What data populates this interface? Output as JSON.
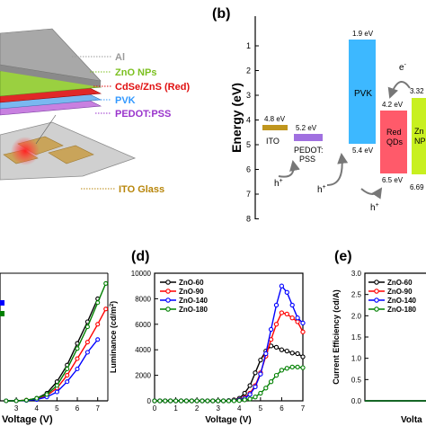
{
  "colors": {
    "series": [
      "#000000",
      "#ff0000",
      "#0000ff",
      "#008000"
    ],
    "al": "#9a9a9a",
    "zno_label": "#7cc020",
    "qd_label": "#e01010",
    "pvk_label": "#3399ff",
    "pedot_label": "#9933cc",
    "ito_label": "#b8860b",
    "ito_level": "#c0961e",
    "pedot_level": "#a070e0",
    "pvk_level": "#3db8ff",
    "qd_level": "#ff5a6a",
    "zno_level": "#c8f020"
  },
  "panel_a": {
    "layers": [
      "Al",
      "ZnO NPs",
      "CdSe/ZnS (Red)",
      "PVK",
      "PEDOT:PSS"
    ],
    "substrate": "ITO Glass"
  },
  "panel_b": {
    "letter": "(b)",
    "ylabel": "Energy (eV)",
    "yticks": [
      "1",
      "2",
      "3",
      "4",
      "5",
      "6",
      "7",
      "8"
    ],
    "ito": {
      "label": "ITO",
      "level": "4.8 eV"
    },
    "pedot": {
      "label1": "PEDOT:",
      "label2": "PSS",
      "level": "5.2 eV"
    },
    "pvk": {
      "label": "PVK",
      "lumo": "1.9 eV",
      "homo": "5.4 eV"
    },
    "qd": {
      "label1": "Red",
      "label2": "QDs",
      "lumo": "4.2 eV",
      "homo": "6.5 eV"
    },
    "zno": {
      "label1": "Zn",
      "label2": "NP",
      "lumo": "3.32",
      "homo": "6.69"
    },
    "hole": "h",
    "electron": "e",
    "plus": "+",
    "minus": "-"
  },
  "panel_c": {
    "xlabel": "Voltage (V)",
    "xticks": [
      "3",
      "4",
      "5",
      "6",
      "7"
    ]
  },
  "panel_d": {
    "letter": "(d)",
    "xlabel": "Voltage (V)",
    "ylabel": "Luminance (cd/m",
    "ylabel_sup": "2",
    "ylabel_end": ")",
    "xticks": [
      "0",
      "1",
      "2",
      "3",
      "4",
      "5",
      "6",
      "7"
    ],
    "yticks": [
      "0",
      "2000",
      "4000",
      "6000",
      "8000",
      "10000"
    ],
    "legend": [
      "ZnO-60",
      "ZnO-90",
      "ZnO-140",
      "ZnO-180"
    ]
  },
  "panel_e": {
    "letter": "(e)",
    "xlabel": "Volta",
    "ylabel": "Current Efficiency (cd/A)",
    "yticks": [
      "0.0",
      "0.5",
      "1.0",
      "1.5",
      "2.0",
      "2.5",
      "3.0"
    ],
    "legend": [
      "ZnO-60",
      "ZnO-90",
      "ZnO-140",
      "ZnO-180"
    ]
  },
  "chart_data": [
    {
      "type": "line",
      "panel": "c",
      "title": "",
      "xlabel": "Voltage (V)",
      "ylabel": "",
      "xlim": [
        2.2,
        7.5
      ],
      "ylim": [
        0,
        100
      ],
      "series": [
        {
          "x": [
            2.5,
            3.0,
            3.5,
            4.0,
            4.5,
            5.0,
            5.5,
            6.0,
            6.5,
            7.0
          ],
          "y": [
            0,
            0,
            0.5,
            2,
            6,
            15,
            28,
            45,
            62,
            80
          ]
        },
        {
          "x": [
            2.5,
            3.0,
            3.5,
            4.0,
            4.5,
            5.0,
            5.5,
            6.0,
            6.5,
            7.0,
            7.4
          ],
          "y": [
            0,
            0,
            0.5,
            1.5,
            4,
            10,
            20,
            33,
            46,
            60,
            72
          ]
        },
        {
          "x": [
            2.5,
            3.0,
            3.5,
            4.0,
            4.5,
            5.0,
            5.5,
            6.0,
            6.5,
            7.0
          ],
          "y": [
            0,
            0,
            0.3,
            1,
            3,
            7,
            15,
            25,
            38,
            48
          ]
        },
        {
          "x": [
            2.5,
            3.0,
            3.5,
            4.0,
            4.5,
            5.0,
            5.5,
            6.0,
            6.5,
            7.0,
            7.4
          ],
          "y": [
            0,
            0,
            0.5,
            2,
            5,
            12,
            25,
            41,
            58,
            77,
            92
          ]
        }
      ]
    },
    {
      "type": "line",
      "panel": "d",
      "title": "",
      "xlabel": "Voltage (V)",
      "ylabel": "Luminance (cd/m2)",
      "xlim": [
        0,
        7
      ],
      "ylim": [
        0,
        10000
      ],
      "legend": "top-left",
      "series": [
        {
          "name": "ZnO-60",
          "x": [
            0,
            0.25,
            0.5,
            0.75,
            1,
            1.25,
            1.5,
            1.75,
            2,
            2.25,
            2.5,
            2.75,
            3,
            3.25,
            3.5,
            3.75,
            4,
            4.25,
            4.5,
            4.75,
            5,
            5.25,
            5.5,
            5.75,
            6,
            6.25,
            6.5,
            6.75,
            7
          ],
          "y": [
            0,
            0,
            0,
            0,
            0,
            0,
            0,
            0,
            0,
            0,
            0,
            0,
            0,
            0,
            20,
            80,
            200,
            600,
            1200,
            2200,
            3200,
            3900,
            4300,
            4200,
            4000,
            3900,
            3750,
            3700,
            3450
          ]
        },
        {
          "name": "ZnO-90",
          "x": [
            0,
            0.25,
            0.5,
            0.75,
            1,
            1.25,
            1.5,
            1.75,
            2,
            2.25,
            2.5,
            2.75,
            3,
            3.25,
            3.5,
            3.75,
            4,
            4.25,
            4.5,
            4.75,
            5,
            5.25,
            5.5,
            5.75,
            6,
            6.25,
            6.5,
            6.75,
            7
          ],
          "y": [
            0,
            0,
            0,
            0,
            0,
            0,
            0,
            0,
            0,
            0,
            0,
            0,
            0,
            0,
            10,
            40,
            100,
            250,
            600,
            1200,
            2200,
            3500,
            4800,
            6000,
            6900,
            6800,
            6500,
            6200,
            5400
          ]
        },
        {
          "name": "ZnO-140",
          "x": [
            0,
            0.25,
            0.5,
            0.75,
            1,
            1.25,
            1.5,
            1.75,
            2,
            2.25,
            2.5,
            2.75,
            3,
            3.25,
            3.5,
            3.75,
            4,
            4.25,
            4.5,
            4.75,
            5,
            5.25,
            5.5,
            5.75,
            6,
            6.25,
            6.5,
            6.75,
            7
          ],
          "y": [
            0,
            0,
            0,
            0,
            0,
            0,
            0,
            0,
            0,
            0,
            0,
            0,
            0,
            0,
            10,
            30,
            80,
            200,
            500,
            1100,
            2100,
            3700,
            5600,
            7500,
            9000,
            8500,
            7500,
            6500,
            6100
          ]
        },
        {
          "name": "ZnO-180",
          "x": [
            0,
            0.25,
            0.5,
            0.75,
            1,
            1.25,
            1.5,
            1.75,
            2,
            2.25,
            2.5,
            2.75,
            3,
            3.25,
            3.5,
            3.75,
            4,
            4.25,
            4.5,
            4.75,
            5,
            5.25,
            5.5,
            5.75,
            6,
            6.25,
            6.5,
            6.75,
            7
          ],
          "y": [
            0,
            0,
            0,
            0,
            0,
            0,
            0,
            0,
            0,
            0,
            0,
            0,
            0,
            0,
            0,
            10,
            30,
            80,
            150,
            300,
            600,
            1000,
            1500,
            2000,
            2400,
            2550,
            2650,
            2650,
            2600
          ]
        }
      ]
    },
    {
      "type": "line",
      "panel": "e",
      "title": "",
      "xlabel": "Volta",
      "ylabel": "Current Efficiency (cd/A)",
      "xlim": [
        0,
        1
      ],
      "ylim": [
        0,
        3
      ],
      "legend": "top-left",
      "series": [
        {
          "name": "ZnO-60",
          "x": [
            0,
            0.2,
            0.4,
            0.6,
            0.8,
            1.0
          ],
          "y": [
            0,
            0,
            0,
            0,
            0,
            0
          ]
        },
        {
          "name": "ZnO-90",
          "x": [
            0,
            0.2,
            0.4,
            0.6,
            0.8,
            1.0
          ],
          "y": [
            0,
            0,
            0,
            0,
            0,
            0
          ]
        },
        {
          "name": "ZnO-140",
          "x": [
            0,
            0.2,
            0.4,
            0.6,
            0.8,
            1.0
          ],
          "y": [
            0,
            0,
            0,
            0,
            0,
            0
          ]
        },
        {
          "name": "ZnO-180",
          "x": [
            0,
            0.2,
            0.4,
            0.6,
            0.8,
            1.0
          ],
          "y": [
            0,
            0,
            0,
            0,
            0,
            0
          ]
        }
      ]
    }
  ]
}
